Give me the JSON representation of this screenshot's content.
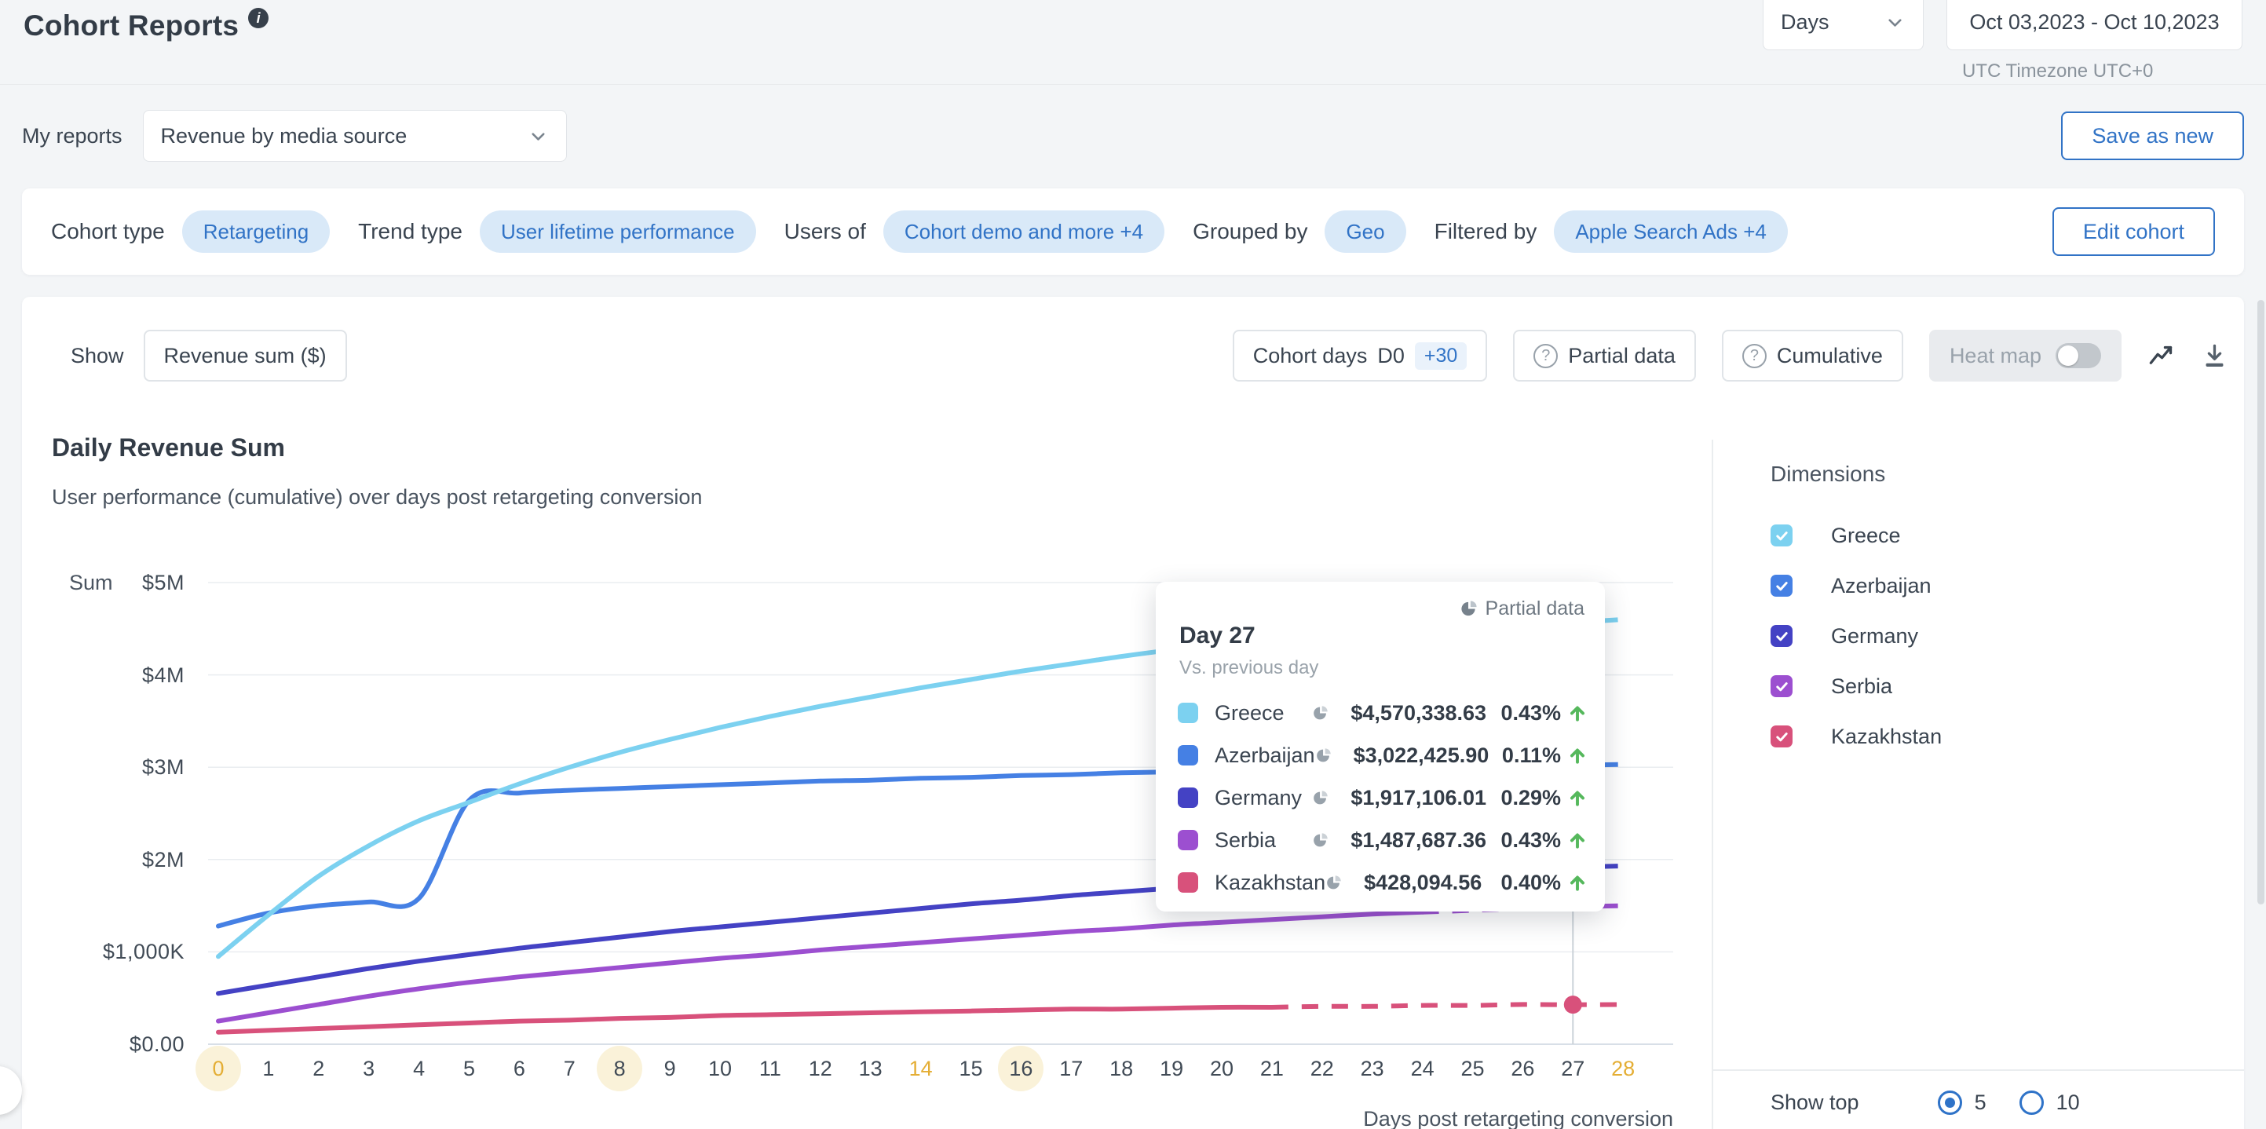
{
  "header": {
    "title": "Cohort Reports",
    "granularity": "Days",
    "date_range": "Oct 03,2023 - Oct 10,2023",
    "timezone_note": "UTC Timezone UTC+0"
  },
  "reports_bar": {
    "label": "My reports",
    "selected_report": "Revenue by media source",
    "save_button": "Save as new"
  },
  "cohort_bar": {
    "cohort_type_label": "Cohort type",
    "cohort_type": "Retargeting",
    "trend_type_label": "Trend type",
    "trend_type": "User lifetime performance",
    "users_of_label": "Users of",
    "users_of": "Cohort demo and more +4",
    "grouped_by_label": "Grouped by",
    "grouped_by": "Geo",
    "filtered_by_label": "Filtered by",
    "filtered_by": "Apple Search Ads +4",
    "edit_button": "Edit cohort"
  },
  "toolbar": {
    "show_label": "Show",
    "metric": "Revenue sum ($)",
    "cohort_days_label": "Cohort days",
    "cohort_days_value": "D0",
    "cohort_days_extra": "+30",
    "partial_data": "Partial data",
    "cumulative": "Cumulative",
    "heat_map": "Heat map",
    "heat_map_on": false
  },
  "chart": {
    "title": "Daily Revenue Sum",
    "subtitle": "User performance (cumulative) over days post retargeting conversion",
    "y_axis_unit": "Sum",
    "x_axis_label": "Days post retargeting conversion"
  },
  "chart_data": {
    "type": "line",
    "title": "Daily Revenue Sum",
    "xlabel": "Days post retargeting conversion",
    "ylabel": "Sum",
    "ylim": [
      0,
      5000000
    ],
    "grid": true,
    "y_ticks": [
      "$5M",
      "$4M",
      "$3M",
      "$2M",
      "$1,000K",
      "$0.00"
    ],
    "x": [
      0,
      1,
      2,
      3,
      4,
      5,
      6,
      7,
      8,
      9,
      10,
      11,
      12,
      13,
      14,
      15,
      16,
      17,
      18,
      19,
      20,
      21,
      22,
      23,
      24,
      25,
      26,
      27,
      28
    ],
    "x_highlight_circle": [
      0,
      8,
      16
    ],
    "x_highlight_orange": [
      0,
      14,
      28
    ],
    "series": [
      {
        "name": "Greece",
        "color": "#7CD1F0",
        "dash_from": 24,
        "values_musd": [
          0.95,
          1.4,
          1.82,
          2.15,
          2.42,
          2.62,
          2.82,
          3.0,
          3.16,
          3.3,
          3.43,
          3.55,
          3.66,
          3.76,
          3.86,
          3.95,
          4.04,
          4.12,
          4.2,
          4.27,
          4.33,
          4.39,
          4.44,
          4.48,
          4.51,
          4.54,
          4.56,
          4.5703,
          4.6
        ]
      },
      {
        "name": "Azerbaijan",
        "color": "#4580E4",
        "dash_from": 24,
        "values_musd": [
          1.28,
          1.42,
          1.5,
          1.54,
          1.58,
          2.64,
          2.72,
          2.75,
          2.77,
          2.79,
          2.81,
          2.83,
          2.85,
          2.86,
          2.88,
          2.89,
          2.91,
          2.92,
          2.94,
          2.95,
          2.96,
          2.97,
          2.98,
          2.99,
          3.0,
          3.01,
          3.01,
          3.0224,
          3.03
        ]
      },
      {
        "name": "Germany",
        "color": "#4442C4",
        "dash_from": 24,
        "values_musd": [
          0.55,
          0.64,
          0.73,
          0.82,
          0.9,
          0.97,
          1.04,
          1.1,
          1.16,
          1.22,
          1.27,
          1.32,
          1.37,
          1.42,
          1.47,
          1.52,
          1.56,
          1.61,
          1.65,
          1.69,
          1.73,
          1.77,
          1.8,
          1.83,
          1.86,
          1.88,
          1.9,
          1.9171,
          1.93
        ]
      },
      {
        "name": "Serbia",
        "color": "#9C4FD0",
        "dash_from": 24,
        "values_musd": [
          0.25,
          0.34,
          0.43,
          0.52,
          0.6,
          0.67,
          0.73,
          0.78,
          0.83,
          0.88,
          0.93,
          0.97,
          1.02,
          1.06,
          1.1,
          1.14,
          1.18,
          1.22,
          1.25,
          1.29,
          1.32,
          1.35,
          1.38,
          1.41,
          1.43,
          1.45,
          1.47,
          1.4877,
          1.5
        ]
      },
      {
        "name": "Kazakhstan",
        "color": "#D8517B",
        "dash_from": 21,
        "values_musd": [
          0.13,
          0.15,
          0.17,
          0.19,
          0.21,
          0.23,
          0.25,
          0.26,
          0.28,
          0.29,
          0.31,
          0.32,
          0.33,
          0.34,
          0.35,
          0.36,
          0.37,
          0.38,
          0.38,
          0.39,
          0.4,
          0.4,
          0.41,
          0.41,
          0.42,
          0.42,
          0.43,
          0.4281,
          0.43
        ]
      }
    ],
    "hover": {
      "day": 27,
      "marker_series": "Kazakhstan",
      "marker_value_musd": 0.4281
    }
  },
  "tooltip": {
    "partial_data_label": "Partial data",
    "title": "Day 27",
    "subtitle": "Vs. previous day",
    "rows": [
      {
        "name": "Greece",
        "color": "#7CD1F0",
        "value": "$4,570,338.63",
        "change": "0.43%",
        "direction": "up"
      },
      {
        "name": "Azerbaijan",
        "color": "#4580E4",
        "value": "$3,022,425.90",
        "change": "0.11%",
        "direction": "up"
      },
      {
        "name": "Germany",
        "color": "#4442C4",
        "value": "$1,917,106.01",
        "change": "0.29%",
        "direction": "up"
      },
      {
        "name": "Serbia",
        "color": "#9C4FD0",
        "value": "$1,487,687.36",
        "change": "0.43%",
        "direction": "up"
      },
      {
        "name": "Kazakhstan",
        "color": "#D8517B",
        "value": "$428,094.56",
        "change": "0.40%",
        "direction": "up"
      }
    ]
  },
  "dimensions": {
    "title": "Dimensions",
    "items": [
      {
        "label": "Greece",
        "color": "#7CD1F0",
        "checked": true
      },
      {
        "label": "Azerbaijan",
        "color": "#4580E4",
        "checked": true
      },
      {
        "label": "Germany",
        "color": "#4442C4",
        "checked": true
      },
      {
        "label": "Serbia",
        "color": "#9C4FD0",
        "checked": true
      },
      {
        "label": "Kazakhstan",
        "color": "#D8517B",
        "checked": true
      }
    ]
  },
  "show_top": {
    "label": "Show top",
    "options": [
      {
        "label": "5",
        "selected": true
      },
      {
        "label": "10",
        "selected": false
      }
    ]
  },
  "status_colors": {
    "positive": "#55B85C",
    "accent_blue": "#3173C6",
    "tick_orange": "#E4AE35"
  }
}
